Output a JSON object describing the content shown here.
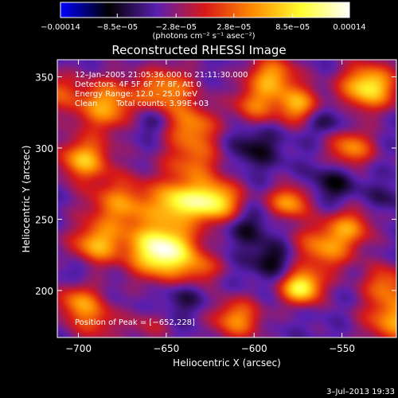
{
  "chart_data": {
    "type": "heatmap",
    "title": "Reconstructed RHESSI Image",
    "xlabel": "Heliocentric X (arcsec)",
    "ylabel": "Heliocentric Y (arcsec)",
    "xlim": [
      -712,
      -519
    ],
    "ylim": [
      167,
      362
    ],
    "x_ticks": [
      -700,
      -650,
      -600,
      -550
    ],
    "y_ticks": [
      200,
      250,
      300,
      350
    ],
    "x_tick_labels": [
      "−700",
      "−650",
      "−600",
      "−550"
    ],
    "y_tick_labels": [
      "200",
      "250",
      "300",
      "350"
    ],
    "colorbar": {
      "range": [
        -0.00014,
        0.00014
      ],
      "ticks": [
        -0.00014,
        -8.5e-05,
        -2.8e-05,
        2.8e-05,
        8.5e-05,
        0.00014
      ],
      "tick_labels": [
        "−0.00014",
        "−8.5e−05",
        "−2.8e−05",
        "2.8e−05",
        "8.5e−05",
        "0.00014"
      ],
      "unit_label": "(photons cm⁻² s⁻¹ asec⁻²)",
      "colormap": [
        "#0000ff",
        "#000000",
        "#5a1fb0",
        "#d81818",
        "#ff8c00",
        "#ffff30",
        "#ffffff"
      ]
    },
    "annotations": {
      "time_range": "12–Jan–2005 21:05:36.000 to 21:11:30.000",
      "detectors": "Detectors: 4F 5F 6F 7F 8F, Att 0",
      "energy_range": "Energy Range: 12.0 – 25.0 keV",
      "algorithm": "Clean",
      "total_counts": "Total counts: 3.99E+03",
      "peak": "Position of Peak = [−652,228]"
    },
    "blobs": [
      {
        "x": -652,
        "y": 228,
        "amp": 1.0,
        "s": 13
      },
      {
        "x": -675,
        "y": 260,
        "amp": 0.5,
        "s": 14
      },
      {
        "x": -690,
        "y": 232,
        "amp": 0.55,
        "s": 10
      },
      {
        "x": -697,
        "y": 292,
        "amp": 0.6,
        "s": 10
      },
      {
        "x": -685,
        "y": 330,
        "amp": 0.55,
        "s": 13
      },
      {
        "x": -650,
        "y": 340,
        "amp": 0.5,
        "s": 12
      },
      {
        "x": -635,
        "y": 315,
        "amp": 0.45,
        "s": 10
      },
      {
        "x": -643,
        "y": 262,
        "amp": 0.65,
        "s": 10
      },
      {
        "x": -622,
        "y": 262,
        "amp": 0.75,
        "s": 10
      },
      {
        "x": -635,
        "y": 290,
        "amp": 0.4,
        "s": 12
      },
      {
        "x": -590,
        "y": 350,
        "amp": 0.55,
        "s": 10
      },
      {
        "x": -600,
        "y": 330,
        "amp": 0.4,
        "s": 9
      },
      {
        "x": -575,
        "y": 330,
        "amp": 0.55,
        "s": 9
      },
      {
        "x": -535,
        "y": 343,
        "amp": 0.75,
        "s": 11
      },
      {
        "x": -545,
        "y": 300,
        "amp": 0.5,
        "s": 9
      },
      {
        "x": -580,
        "y": 262,
        "amp": 0.55,
        "s": 8
      },
      {
        "x": -560,
        "y": 230,
        "amp": 0.5,
        "s": 12
      },
      {
        "x": -545,
        "y": 245,
        "amp": 0.4,
        "s": 9
      },
      {
        "x": -573,
        "y": 202,
        "amp": 0.8,
        "s": 8
      },
      {
        "x": -610,
        "y": 180,
        "amp": 0.5,
        "s": 10
      },
      {
        "x": -630,
        "y": 215,
        "amp": 0.3,
        "s": 8
      },
      {
        "x": -700,
        "y": 192,
        "amp": 0.45,
        "s": 9
      },
      {
        "x": -690,
        "y": 178,
        "amp": 0.3,
        "s": 10
      },
      {
        "x": -520,
        "y": 180,
        "amp": 0.55,
        "s": 12
      },
      {
        "x": -525,
        "y": 205,
        "amp": 0.4,
        "s": 9
      },
      {
        "x": -660,
        "y": 175,
        "amp": 0.2,
        "s": 8
      },
      {
        "x": -715,
        "y": 340,
        "amp": 0.35,
        "s": 9
      },
      {
        "x": -660,
        "y": 320,
        "amp": -0.22,
        "s": 8
      },
      {
        "x": -600,
        "y": 300,
        "amp": -0.22,
        "s": 10
      },
      {
        "x": -590,
        "y": 222,
        "amp": -0.25,
        "s": 9
      },
      {
        "x": -555,
        "y": 275,
        "amp": -0.22,
        "s": 9
      },
      {
        "x": -605,
        "y": 245,
        "amp": -0.2,
        "s": 9
      },
      {
        "x": -560,
        "y": 320,
        "amp": -0.2,
        "s": 8
      },
      {
        "x": -640,
        "y": 195,
        "amp": -0.15,
        "s": 9
      },
      {
        "x": -700,
        "y": 215,
        "amp": -0.1,
        "s": 7
      },
      {
        "x": -525,
        "y": 265,
        "amp": -0.12,
        "s": 7
      }
    ]
  },
  "footer": {
    "timestamp": "3–Jul–2013 19:33"
  }
}
